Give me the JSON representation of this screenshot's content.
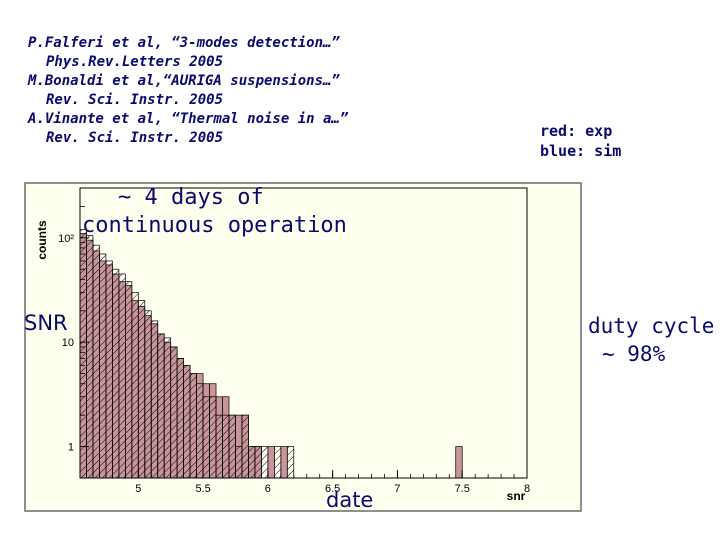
{
  "references": [
    {
      "line1": "P.Falferi et al, “3-modes detection…”",
      "line2": "Phys.Rev.Letters 2005"
    },
    {
      "line1": "M.Bonaldi et al,“AURIGA suspensions…”",
      "line2": "Rev. Sci. Instr. 2005"
    },
    {
      "line1": "A.Vinante et al, “Thermal noise in a…”",
      "line2": "Rev. Sci. Instr. 2005"
    }
  ],
  "legend_note": {
    "red": "red: exp",
    "blue": "blue: sim"
  },
  "annotations": {
    "days_line1": "~ 4 days of",
    "days_line2": "continuous  operation",
    "snr": "SNR",
    "duty_line1": "duty cycle",
    "duty_line2": "~ 98%",
    "date": "date"
  },
  "colors": {
    "frame_bg": "#fffff0",
    "frame_border": "#6a6a6a",
    "plot_border": "#000000",
    "exp_fill": "#c9959a",
    "sim_hatch": "#000000",
    "text": "#0a0a6e"
  },
  "chart_data": {
    "type": "bar",
    "xlabel": "snr",
    "ylabel": "counts",
    "xlim": [
      4.55,
      8.0
    ],
    "ylim": [
      0.5,
      300
    ],
    "yscale": "log",
    "x_ticks": [
      "5",
      "5.5",
      "6",
      "6.5",
      "7",
      "7.5",
      "8"
    ],
    "x_tick_values": [
      5,
      5.5,
      6,
      6.5,
      7,
      7.5,
      8
    ],
    "y_ticks": [
      "1",
      "10",
      "10²"
    ],
    "y_tick_values": [
      1,
      10,
      100
    ],
    "bin_width": 0.05,
    "series": [
      {
        "name": "exp",
        "style": "filled",
        "x_start": [
          4.55,
          4.6,
          4.65,
          4.7,
          4.75,
          4.8,
          4.85,
          4.9,
          4.95,
          5.0,
          5.05,
          5.1,
          5.15,
          5.2,
          5.25,
          5.3,
          5.35,
          5.4,
          5.45,
          5.5,
          5.55,
          5.6,
          5.65,
          5.7,
          5.75,
          5.8,
          5.85,
          5.9,
          6.0,
          6.1,
          7.45
        ],
        "values": [
          110,
          95,
          75,
          60,
          55,
          45,
          38,
          35,
          25,
          22,
          18,
          15,
          12,
          10,
          9,
          7,
          6,
          5,
          5,
          4,
          4,
          3,
          3,
          2,
          2,
          2,
          1,
          1,
          1,
          1,
          1
        ]
      },
      {
        "name": "sim",
        "style": "hatched",
        "x_start": [
          4.55,
          4.6,
          4.65,
          4.7,
          4.75,
          4.8,
          4.85,
          4.9,
          4.95,
          5.0,
          5.05,
          5.1,
          5.15,
          5.2,
          5.25,
          5.3,
          5.35,
          5.4,
          5.45,
          5.5,
          5.55,
          5.6,
          5.65,
          5.7,
          5.75,
          5.8,
          5.85,
          5.9,
          5.95,
          6.05,
          6.15
        ],
        "values": [
          120,
          105,
          85,
          70,
          60,
          50,
          45,
          38,
          30,
          25,
          20,
          16,
          12,
          11,
          9,
          7,
          6,
          5,
          4,
          3,
          3,
          2,
          2,
          2,
          1,
          2,
          1,
          1,
          1,
          1,
          1
        ]
      }
    ]
  }
}
